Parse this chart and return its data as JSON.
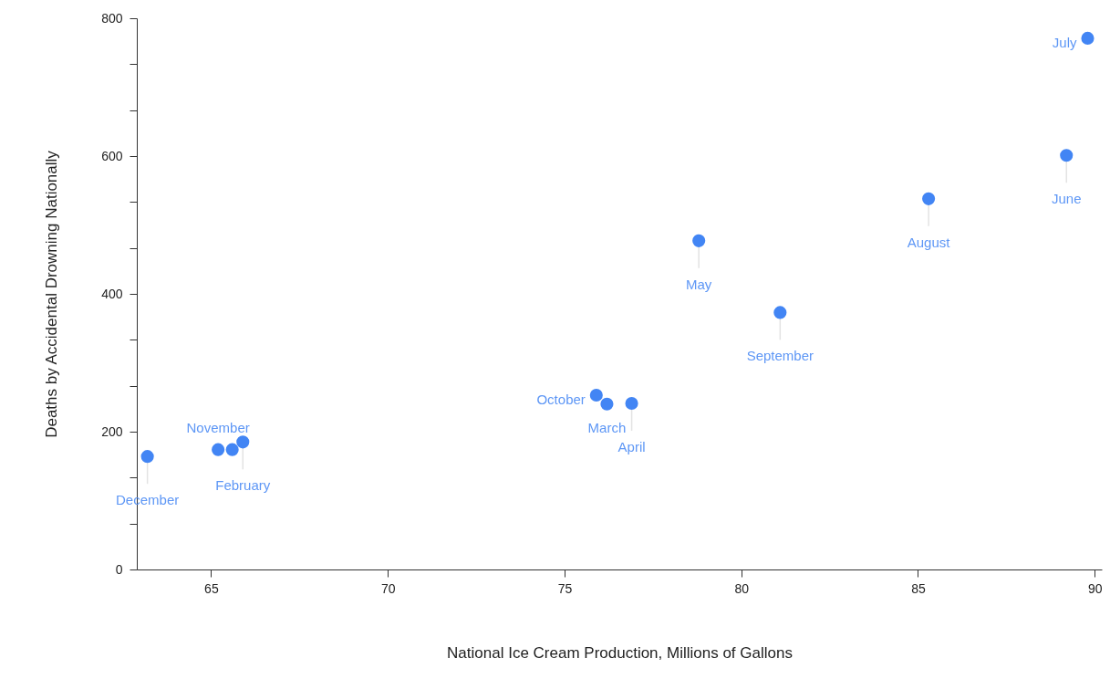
{
  "chart_data": {
    "type": "scatter",
    "xlabel": "National Ice Cream Production, Millions of Gallons",
    "ylabel": "Deaths by Accidental Drowning Nationally",
    "x": [
      63.2,
      65.2,
      65.6,
      65.9,
      75.9,
      76.2,
      76.9,
      78.8,
      81.1,
      85.3,
      89.2,
      89.8
    ],
    "values": [
      164,
      174,
      174,
      185,
      253,
      240,
      241,
      477,
      373,
      538,
      601,
      771
    ],
    "value_labels": [
      "December",
      "November",
      null,
      "February",
      "October",
      "March",
      "April",
      "May",
      "September",
      "August",
      "June",
      "July"
    ],
    "color": "#4285f4",
    "xlim": [
      62.9,
      90.2
    ],
    "xticks": [
      65,
      70,
      75,
      80,
      85,
      90
    ],
    "ylim": [
      0,
      800
    ],
    "yticks": [
      0,
      {
        "value": 66.7,
        "label": null
      },
      {
        "value": 133.3,
        "label": null
      },
      200,
      {
        "value": 266.7,
        "label": null
      },
      {
        "value": 333.3,
        "label": null
      },
      400,
      {
        "value": 466.7,
        "label": null
      },
      {
        "value": 533.3,
        "label": null
      },
      600,
      {
        "value": 666.7,
        "label": null
      },
      {
        "value": 733.3,
        "label": null
      },
      800
    ],
    "grid": false,
    "legend": false,
    "marker": "circle"
  }
}
